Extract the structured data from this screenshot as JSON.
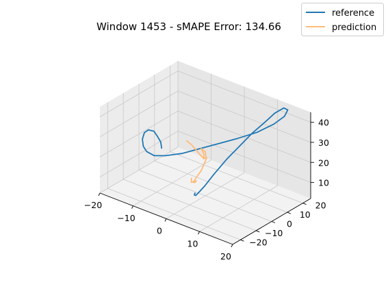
{
  "chart_data": {
    "type": "line3d",
    "title": "Window 1453 - sMAPE Error: 134.66",
    "xlabel": "",
    "ylabel": "",
    "zlabel": "",
    "xlim": [
      -20,
      20
    ],
    "ylim": [
      -25,
      25
    ],
    "zlim": [
      2,
      45
    ],
    "x_ticks": [
      -20,
      -10,
      0,
      10,
      20
    ],
    "y_ticks": [
      -20,
      -10,
      0,
      10,
      20
    ],
    "z_ticks": [
      10,
      20,
      30,
      40
    ],
    "grid": true,
    "legend_position": "top-right",
    "colors": {
      "reference": "#1f77b4",
      "prediction": "#ffbb78"
    },
    "series": [
      {
        "name": "reference",
        "points": [
          [
            -8.4,
            -10.1,
            25.0
          ],
          [
            -8.9,
            -9.6,
            27.5
          ],
          [
            -9.9,
            -9.9,
            30.2
          ],
          [
            -10.6,
            -10.4,
            32.2
          ],
          [
            -11.5,
            -12.0,
            33.0
          ],
          [
            -12.0,
            -13.5,
            32.0
          ],
          [
            -11.9,
            -15.0,
            29.5
          ],
          [
            -11.4,
            -15.5,
            26.5
          ],
          [
            -10.6,
            -15.1,
            24.2
          ],
          [
            -9.0,
            -13.6,
            22.5
          ],
          [
            -7.0,
            -11.0,
            22.5
          ],
          [
            -4.0,
            -6.5,
            23.5
          ],
          [
            -1.0,
            -1.5,
            25.5
          ],
          [
            2.0,
            3.5,
            27.5
          ],
          [
            5.5,
            9.0,
            30.0
          ],
          [
            9.0,
            14.0,
            33.0
          ],
          [
            12.0,
            18.5,
            37.0
          ],
          [
            14.0,
            21.0,
            41.0
          ],
          [
            14.5,
            22.0,
            44.0
          ],
          [
            13.8,
            21.0,
            45.0
          ],
          [
            12.5,
            18.0,
            43.0
          ],
          [
            11.0,
            15.0,
            39.0
          ],
          [
            9.0,
            11.0,
            34.0
          ],
          [
            7.0,
            7.0,
            28.0
          ],
          [
            5.0,
            3.0,
            22.0
          ],
          [
            3.0,
            -1.0,
            15.0
          ],
          [
            1.5,
            -3.5,
            9.5
          ],
          [
            0.3,
            -5.0,
            6.0
          ],
          [
            -0.3,
            -5.5,
            4.5
          ],
          [
            -0.8,
            -5.3,
            4.3
          ],
          [
            -1.0,
            -4.5,
            4.8
          ]
        ]
      },
      {
        "name": "prediction",
        "points": [
          [
            -3.0,
            -5.5,
            30.0
          ],
          [
            -2.2,
            -4.2,
            28.0
          ],
          [
            -1.3,
            -2.8,
            25.0
          ],
          [
            -0.5,
            -1.8,
            22.5
          ],
          [
            0.0,
            -1.0,
            21.0
          ],
          [
            -0.2,
            -0.5,
            23.0
          ],
          [
            -0.8,
            -1.0,
            25.5
          ],
          [
            0.0,
            0.0,
            24.0
          ],
          [
            0.2,
            0.0,
            21.0
          ],
          [
            -0.3,
            -0.5,
            20.5
          ],
          [
            0.3,
            0.3,
            21.0
          ],
          [
            -0.5,
            -1.5,
            15.0
          ],
          [
            -1.5,
            -3.0,
            11.0
          ],
          [
            -2.0,
            -3.5,
            9.0
          ],
          [
            -2.0,
            -2.5,
            8.5
          ],
          [
            -2.0,
            -1.5,
            8.8
          ],
          [
            -2.8,
            -3.0,
            8.3
          ],
          [
            -3.0,
            -2.5,
            10.0
          ]
        ]
      }
    ]
  }
}
